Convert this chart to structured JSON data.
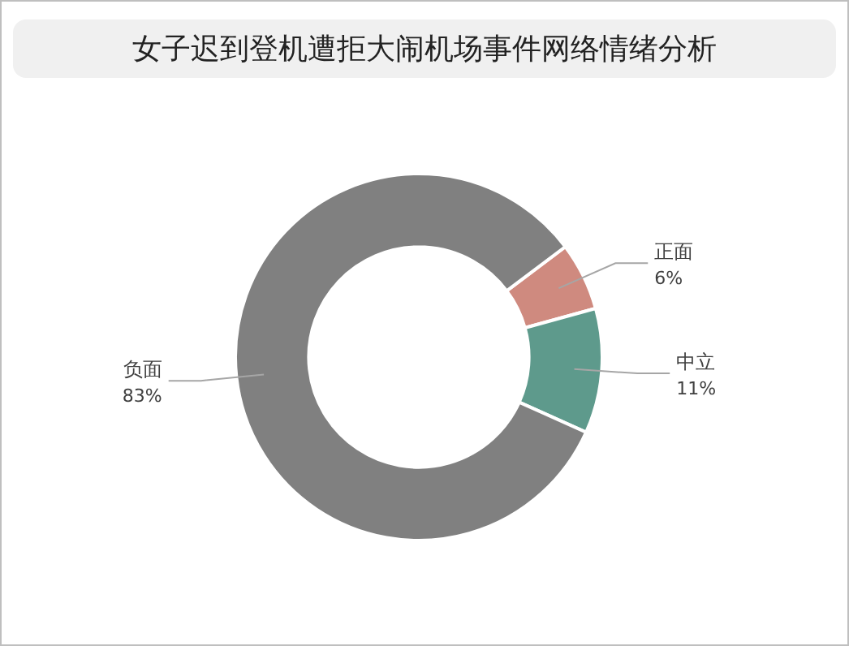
{
  "chart_data": {
    "type": "donut",
    "title": "女子迟到登机遭拒大闹机场事件网络情绪分析",
    "categories": [
      "正面",
      "中立",
      "负面"
    ],
    "values": [
      6,
      11,
      83
    ],
    "value_labels": [
      "6%",
      "11%",
      "83%"
    ],
    "colors": [
      "#cf8a7f",
      "#5e9a8c",
      "#808080"
    ],
    "legend": false
  }
}
